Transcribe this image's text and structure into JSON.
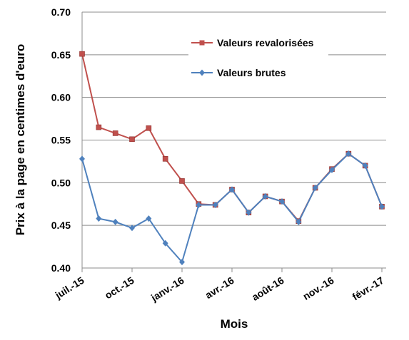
{
  "chart_data": {
    "type": "line",
    "xlabel": "Mois",
    "ylabel": "Prix à la page en centimes d'euro",
    "ylim": [
      0.4,
      0.7
    ],
    "y_ticks": [
      "0.40",
      "0.45",
      "0.50",
      "0.55",
      "0.60",
      "0.65",
      "0.70"
    ],
    "x_ticks": [
      "juil.-15",
      "oct.-15",
      "janv.-16",
      "avr.-16",
      "août-16",
      "nov.-16",
      "févr.-17"
    ],
    "grid": "horizontal",
    "legend_position": "top-right",
    "series": [
      {
        "name": "Valeurs revalorisées",
        "color": "#C0504D",
        "marker": "square",
        "x": [
          "2015-07",
          "2015-08",
          "2015-09",
          "2015-10",
          "2015-11",
          "2015-12",
          "2016-01",
          "2016-02",
          "2016-03",
          "2016-04",
          "2016-05",
          "2016-06",
          "2016-07",
          "2016-08",
          "2016-09",
          "2016-10",
          "2016-11",
          "2016-12",
          "2017-01"
        ],
        "values": [
          0.651,
          0.565,
          0.558,
          0.551,
          0.564,
          0.528,
          0.502,
          0.475,
          0.474,
          0.492,
          0.465,
          0.484,
          0.478,
          0.455,
          0.494,
          0.516,
          0.534,
          0.52,
          0.472
        ]
      },
      {
        "name": "Valeurs brutes",
        "color": "#4F81BD",
        "marker": "diamond",
        "x": [
          "2015-07",
          "2015-08",
          "2015-09",
          "2015-10",
          "2015-11",
          "2015-12",
          "2016-01",
          "2016-02",
          "2016-03",
          "2016-04",
          "2016-05",
          "2016-06",
          "2016-07",
          "2016-08",
          "2016-09",
          "2016-10",
          "2016-11",
          "2016-12",
          "2017-01"
        ],
        "values": [
          0.528,
          0.458,
          0.454,
          0.447,
          0.458,
          0.429,
          0.407,
          0.474,
          0.474,
          0.492,
          0.465,
          0.484,
          0.478,
          0.454,
          0.494,
          0.515,
          0.534,
          0.52,
          0.472
        ]
      }
    ]
  }
}
